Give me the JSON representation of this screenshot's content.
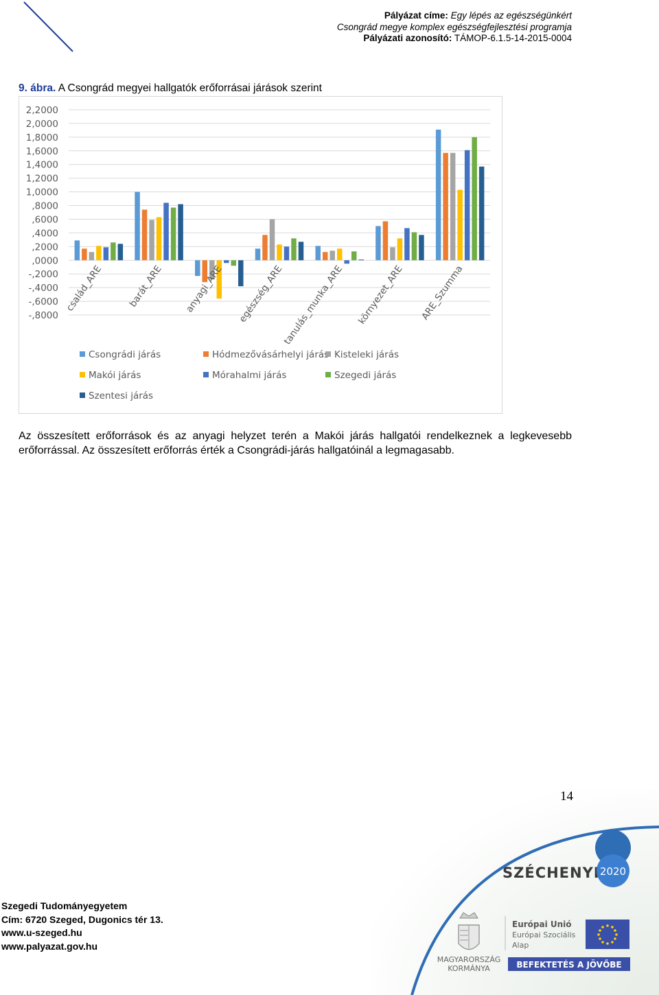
{
  "header": {
    "line1_label": "Pályázat címe:",
    "line1_value": "Egy lépés az egészségünkért",
    "line2": "Csongrád megye komplex egészségfejlesztési programja",
    "line3_label": "Pályázati azonosító:",
    "line3_value": "TÁMOP-6.1.5-14-2015-0004"
  },
  "figure": {
    "number": "9. ábra.",
    "caption": "A Csongrád megyei hallgatók erőforrásai járások szerint"
  },
  "colors": {
    "Csongrádi járás": "#5b9bd5",
    "Hódmezővásárhelyi járás": "#ed7d31",
    "Kisteleki járás": "#a5a5a5",
    "Makói járás": "#ffc000",
    "Mórahalmi járás": "#4472c4",
    "Szegedi járás": "#70ad47",
    "Szentesi járás": "#255e91",
    "decor_line": "#1f3d99",
    "arc": "#2f6db4"
  },
  "chart_data": {
    "type": "bar",
    "categories": [
      "család_ARE",
      "barát_ARE",
      "anyagi_ARE",
      "egészség_ARE",
      "tanulás_munka_ARE",
      "környezet_ARE",
      "ARE_Szumma"
    ],
    "ylim": [
      -0.8,
      2.2
    ],
    "yticks": [
      "2,2000",
      "2,0000",
      "1,8000",
      "1,6000",
      "1,4000",
      "1,2000",
      "1,0000",
      ",8000",
      ",6000",
      ",4000",
      ",2000",
      ",0000",
      "-,2000",
      "-,4000",
      "-,6000",
      "-,8000"
    ],
    "grid": true,
    "legend_position": "bottom-left",
    "series": [
      {
        "name": "Csongrádi járás",
        "values": [
          0.29,
          1.0,
          -0.23,
          0.17,
          0.21,
          0.5,
          1.91
        ]
      },
      {
        "name": "Hódmezővásárhelyi járás",
        "values": [
          0.17,
          0.74,
          -0.32,
          0.37,
          0.12,
          0.57,
          1.57
        ]
      },
      {
        "name": "Kisteleki járás",
        "values": [
          0.12,
          0.59,
          -0.28,
          0.6,
          0.14,
          0.19,
          1.57
        ]
      },
      {
        "name": "Makói járás",
        "values": [
          0.21,
          0.63,
          -0.56,
          0.23,
          0.17,
          0.32,
          1.03
        ]
      },
      {
        "name": "Mórahalmi járás",
        "values": [
          0.19,
          0.84,
          -0.04,
          0.2,
          -0.05,
          0.47,
          1.61
        ]
      },
      {
        "name": "Szegedi járás",
        "values": [
          0.26,
          0.77,
          -0.08,
          0.32,
          0.13,
          0.41,
          1.8
        ]
      },
      {
        "name": "Szentesi járás",
        "values": [
          0.24,
          0.82,
          -0.38,
          0.27,
          0.01,
          0.37,
          1.37
        ]
      }
    ]
  },
  "body": {
    "paragraph": "Az összesített erőforrások és az anyagi helyzet terén a Makói járás hallgatói rendelkeznek a legkevesebb erőforrással. Az összesített erőforrás érték a Csongrádi-járás hallgatóinál a legmagasabb."
  },
  "page_number": "14",
  "footer": {
    "org": "Szegedi Tudományegyetem",
    "address": "Cím: 6720 Szeged, Dugonics tér 13.",
    "web1": "www.u-szeged.hu",
    "web2": "www.palyazat.gov.hu"
  },
  "logos": {
    "szechenyi": "SZÉCHENYI",
    "szechenyi_year": "2020",
    "gov_line1": "MAGYARORSZÁG",
    "gov_line2": "KORMÁNYA",
    "eu_line1": "Európai Unió",
    "eu_line2": "Európai Szociális",
    "eu_line3": "Alap",
    "banner": "BEFEKTETÉS A JÖVŐBE"
  }
}
